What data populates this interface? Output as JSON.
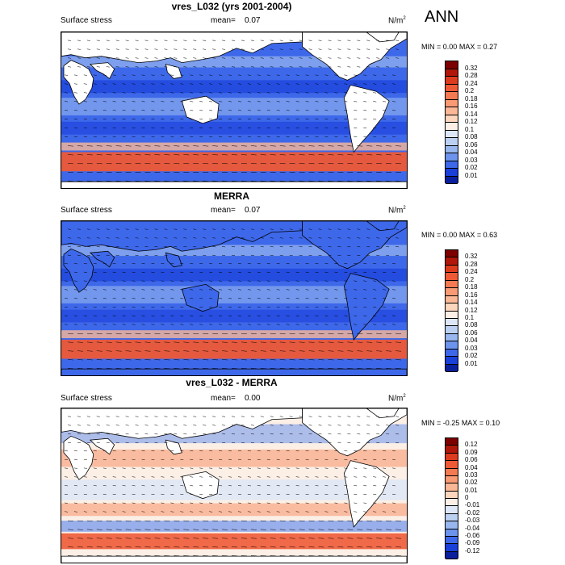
{
  "season": "ANN",
  "panels": [
    {
      "title": "vres_L032 (yrs 2001-2004)",
      "variable": "Surface stress",
      "mean_label": "mean=",
      "mean_value": "0.07",
      "units": "N/m",
      "units_sup": "2",
      "min_label": "MIN =",
      "min_value": "0.00",
      "max_label": "MAX =",
      "max_value": "0.27",
      "colorbar_levels": [
        "0.32",
        "0.28",
        "0.24",
        "0.2",
        "0.18",
        "0.16",
        "0.14",
        "0.12",
        "0.1",
        "0.08",
        "0.06",
        "0.04",
        "0.03",
        "0.02",
        "0.01"
      ],
      "colorbar_colors": [
        "#7d0000",
        "#b0170a",
        "#dd3b1e",
        "#ee5a36",
        "#f47a52",
        "#f89a73",
        "#fbb896",
        "#fdd6be",
        "#fbefe6",
        "#dde7f7",
        "#bcd1f2",
        "#98b7ee",
        "#6d94ec",
        "#3e68ea",
        "#1a40da",
        "#0a1f9c"
      ]
    },
    {
      "title": "MERRA",
      "variable": "Surface stress",
      "mean_label": "mean=",
      "mean_value": "0.07",
      "units": "N/m",
      "units_sup": "2",
      "min_label": "MIN =",
      "min_value": "0.00",
      "max_label": "MAX =",
      "max_value": "0.63",
      "colorbar_levels": [
        "0.32",
        "0.28",
        "0.24",
        "0.2",
        "0.18",
        "0.16",
        "0.14",
        "0.12",
        "0.1",
        "0.08",
        "0.06",
        "0.04",
        "0.03",
        "0.02",
        "0.01"
      ],
      "colorbar_colors": [
        "#7d0000",
        "#b0170a",
        "#dd3b1e",
        "#ee5a36",
        "#f47a52",
        "#f89a73",
        "#fbb896",
        "#fdd6be",
        "#fbefe6",
        "#dde7f7",
        "#bcd1f2",
        "#98b7ee",
        "#6d94ec",
        "#3e68ea",
        "#1a40da",
        "#0a1f9c"
      ]
    },
    {
      "title": "vres_L032 - MERRA",
      "variable": "Surface stress",
      "mean_label": "mean=",
      "mean_value": "0.00",
      "units": "N/m",
      "units_sup": "2",
      "min_label": "MIN =",
      "min_value": "-0.25",
      "max_label": "MAX =",
      "max_value": "0.10",
      "colorbar_levels": [
        "0.12",
        "0.09",
        "0.06",
        "0.04",
        "0.03",
        "0.02",
        "0.01",
        "0",
        "-0.01",
        "-0.02",
        "-0.03",
        "-0.04",
        "-0.06",
        "-0.09",
        "-0.12"
      ],
      "colorbar_colors": [
        "#7d0000",
        "#b0170a",
        "#dd3b1e",
        "#ee5a36",
        "#f47a52",
        "#f89a73",
        "#fbb896",
        "#fdd6be",
        "#fbefe6",
        "#dde7f7",
        "#bcd1f2",
        "#98b7ee",
        "#6d94ec",
        "#3e68ea",
        "#1a40da",
        "#0a1f9c"
      ]
    }
  ],
  "colors": {
    "ocean_base": "#3e68ea",
    "ocean_weak": "#98b7ee",
    "ocean_strong": "#1a40da",
    "westerlies": "#ee5a36",
    "diff_positive": "#f89a73",
    "diff_negative": "#6d94ec",
    "land": "#ffffff",
    "vectors": "#000000"
  }
}
